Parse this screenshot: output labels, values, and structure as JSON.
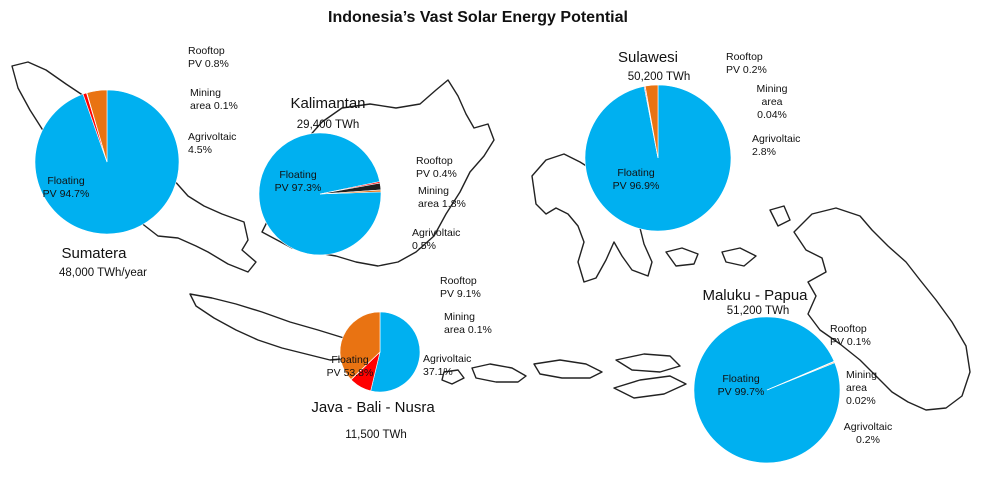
{
  "chart_data": {
    "type": "pie",
    "title": "Indonesia’s Vast Solar Energy Potential",
    "colors": {
      "Floating PV": "#00B0F0",
      "Rooftop PV": "#FF0000",
      "Mining area": "#1F1F1F",
      "Agrivoltaic": "#E97312"
    },
    "regions": [
      {
        "id": "sumatera",
        "name": "Sumatera",
        "total": "48,000  TWh/year",
        "slices": [
          {
            "category": "Floating PV",
            "value": 94.7,
            "label_lines": [
              "Floating",
              "PV 94.7%"
            ]
          },
          {
            "category": "Rooftop PV",
            "value": 0.8,
            "label_lines": [
              "Rooftop",
              "PV 0.8%"
            ]
          },
          {
            "category": "Mining area",
            "value": 0.1,
            "label_lines": [
              "Mining",
              "area 0.1%"
            ]
          },
          {
            "category": "Agrivoltaic",
            "value": 4.5,
            "label_lines": [
              "Agrivoltaic",
              "4.5%"
            ]
          }
        ]
      },
      {
        "id": "kalimantan",
        "name": "Kalimantan",
        "total": "29,400  TWh",
        "slices": [
          {
            "category": "Floating PV",
            "value": 97.3,
            "label_lines": [
              "Floating",
              "PV 97.3%"
            ]
          },
          {
            "category": "Rooftop PV",
            "value": 0.4,
            "label_lines": [
              "Rooftop",
              "PV 0.4%"
            ]
          },
          {
            "category": "Mining area",
            "value": 1.8,
            "label_lines": [
              "Mining",
              "area 1.8%"
            ]
          },
          {
            "category": "Agrivoltaic",
            "value": 0.5,
            "label_lines": [
              "Agrivoltaic",
              "0.5%"
            ]
          }
        ]
      },
      {
        "id": "sulawesi",
        "name": "Sulawesi",
        "total": "50,200  TWh",
        "slices": [
          {
            "category": "Floating PV",
            "value": 96.9,
            "label_lines": [
              "Floating",
              "PV 96.9%"
            ]
          },
          {
            "category": "Rooftop PV",
            "value": 0.2,
            "label_lines": [
              "Rooftop",
              "PV 0.2%"
            ]
          },
          {
            "category": "Mining area",
            "value": 0.04,
            "label_lines": [
              "Mining",
              "area",
              "0.04%"
            ]
          },
          {
            "category": "Agrivoltaic",
            "value": 2.8,
            "label_lines": [
              "Agrivoltaic",
              "2.8%"
            ]
          }
        ]
      },
      {
        "id": "java-bali-nusra",
        "name": "Java - Bali - Nusra",
        "total": "11,500  TWh",
        "slices": [
          {
            "category": "Floating PV",
            "value": 53.8,
            "label_lines": [
              "Floating",
              "PV 53.8%"
            ]
          },
          {
            "category": "Rooftop PV",
            "value": 9.1,
            "label_lines": [
              "Rooftop",
              "PV 9.1%"
            ]
          },
          {
            "category": "Mining area",
            "value": 0.1,
            "label_lines": [
              "Mining",
              "area 0.1%"
            ]
          },
          {
            "category": "Agrivoltaic",
            "value": 37.1,
            "label_lines": [
              "Agrivoltaic",
              "37.1%"
            ]
          }
        ]
      },
      {
        "id": "maluku-papua",
        "name": "Maluku - Papua",
        "total": "51,200  TWh",
        "slices": [
          {
            "category": "Floating PV",
            "value": 99.7,
            "label_lines": [
              "Floating",
              "PV 99.7%"
            ]
          },
          {
            "category": "Rooftop PV",
            "value": 0.1,
            "label_lines": [
              "Rooftop",
              "PV 0.1%"
            ]
          },
          {
            "category": "Mining area",
            "value": 0.02,
            "label_lines": [
              "Mining",
              "area",
              "0.02%"
            ]
          },
          {
            "category": "Agrivoltaic",
            "value": 0.2,
            "label_lines": [
              "Agrivoltaic",
              "0.2%"
            ]
          }
        ]
      }
    ]
  }
}
